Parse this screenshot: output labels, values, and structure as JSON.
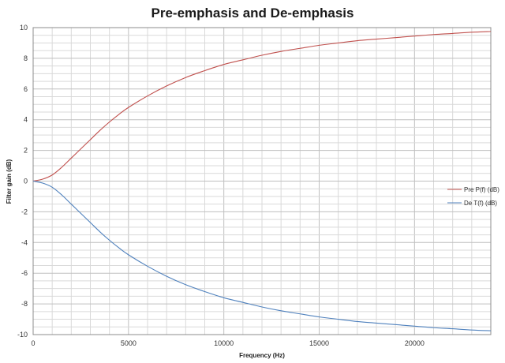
{
  "chart_data": {
    "type": "line",
    "title": "Pre-emphasis and De-emphasis",
    "xlabel": "Frequency (Hz)",
    "ylabel": "Filter gain (dB)",
    "xlim": [
      0,
      24000
    ],
    "ylim": [
      -10,
      10
    ],
    "x_ticks": [
      0,
      5000,
      10000,
      15000,
      20000
    ],
    "y_ticks": [
      -10,
      -8,
      -6,
      -4,
      -2,
      0,
      2,
      4,
      6,
      8,
      10
    ],
    "grid": true,
    "legend_position": "right",
    "x": [
      0,
      500,
      1000,
      1500,
      2000,
      2500,
      3000,
      3500,
      4000,
      4500,
      5000,
      6000,
      7000,
      8000,
      9000,
      10000,
      11000,
      12000,
      13000,
      14000,
      15000,
      16000,
      17000,
      18000,
      19000,
      20000,
      21000,
      22000,
      23000,
      24000
    ],
    "series": [
      {
        "name": "Pre P(f) (dB)",
        "color": "#c0504d",
        "values": [
          0.0,
          0.13,
          0.4,
          0.9,
          1.5,
          2.1,
          2.7,
          3.3,
          3.85,
          4.35,
          4.8,
          5.55,
          6.2,
          6.75,
          7.2,
          7.6,
          7.9,
          8.2,
          8.45,
          8.65,
          8.85,
          9.0,
          9.15,
          9.25,
          9.35,
          9.45,
          9.55,
          9.62,
          9.7,
          9.75
        ]
      },
      {
        "name": "De T(f) (dB)",
        "color": "#4f81bd",
        "values": [
          0.0,
          -0.13,
          -0.4,
          -0.9,
          -1.5,
          -2.1,
          -2.7,
          -3.3,
          -3.85,
          -4.35,
          -4.8,
          -5.55,
          -6.2,
          -6.75,
          -7.2,
          -7.6,
          -7.9,
          -8.2,
          -8.45,
          -8.65,
          -8.85,
          -9.0,
          -9.15,
          -9.25,
          -9.35,
          -9.45,
          -9.55,
          -9.62,
          -9.7,
          -9.75
        ]
      }
    ]
  }
}
